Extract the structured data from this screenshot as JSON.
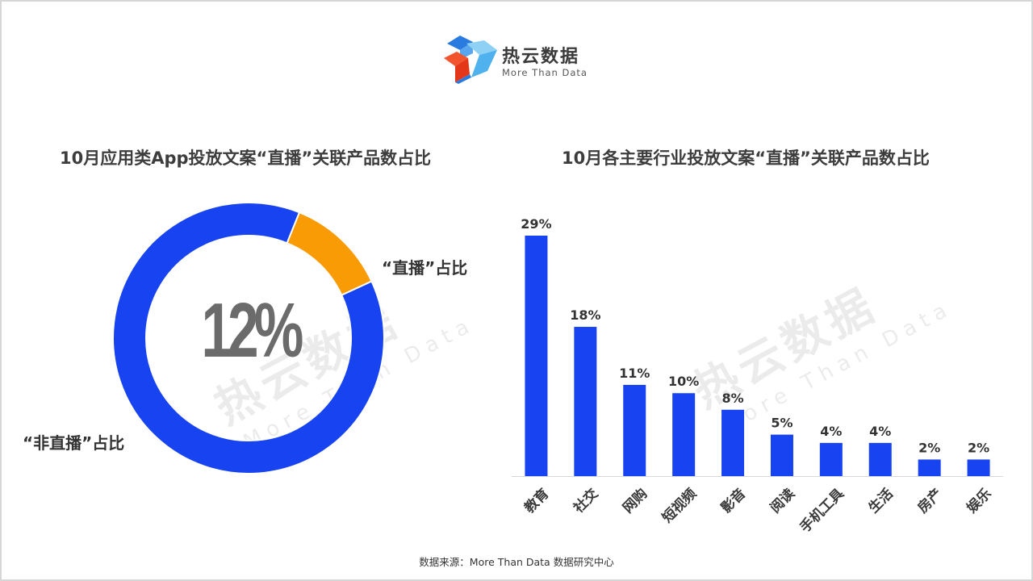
{
  "logo": {
    "name": "热云数据",
    "tagline": "More Than Data"
  },
  "colors": {
    "blue": "#1744f0",
    "orange": "#f99b05",
    "text": "#3d3d3d"
  },
  "chart_data": [
    {
      "type": "pie",
      "title": "10月应用类App投放文案“直播”关联产品数占比",
      "categories": [
        "“直播”占比",
        "“非直播”占比"
      ],
      "values": [
        12,
        88
      ],
      "unit": "%",
      "center_label": "12%",
      "colors": [
        "#f99b05",
        "#1744f0"
      ]
    },
    {
      "type": "bar",
      "title": "10月各主要行业投放文案“直播”关联产品数占比",
      "categories": [
        "教育",
        "社交",
        "网购",
        "短视频",
        "影音",
        "阅读",
        "手机工具",
        "生活",
        "房产",
        "娱乐"
      ],
      "values": [
        29,
        18,
        11,
        10,
        8,
        5,
        4,
        4,
        2,
        2
      ],
      "data_labels": [
        "29%",
        "18%",
        "11%",
        "10%",
        "8%",
        "5%",
        "4%",
        "4%",
        "2%",
        "2%"
      ],
      "unit": "%",
      "xlabel": "",
      "ylabel": "",
      "ylim": [
        0,
        29
      ],
      "grid": false,
      "color": "#1744f0"
    }
  ],
  "source": "数据来源：More Than Data 数据研究中心"
}
